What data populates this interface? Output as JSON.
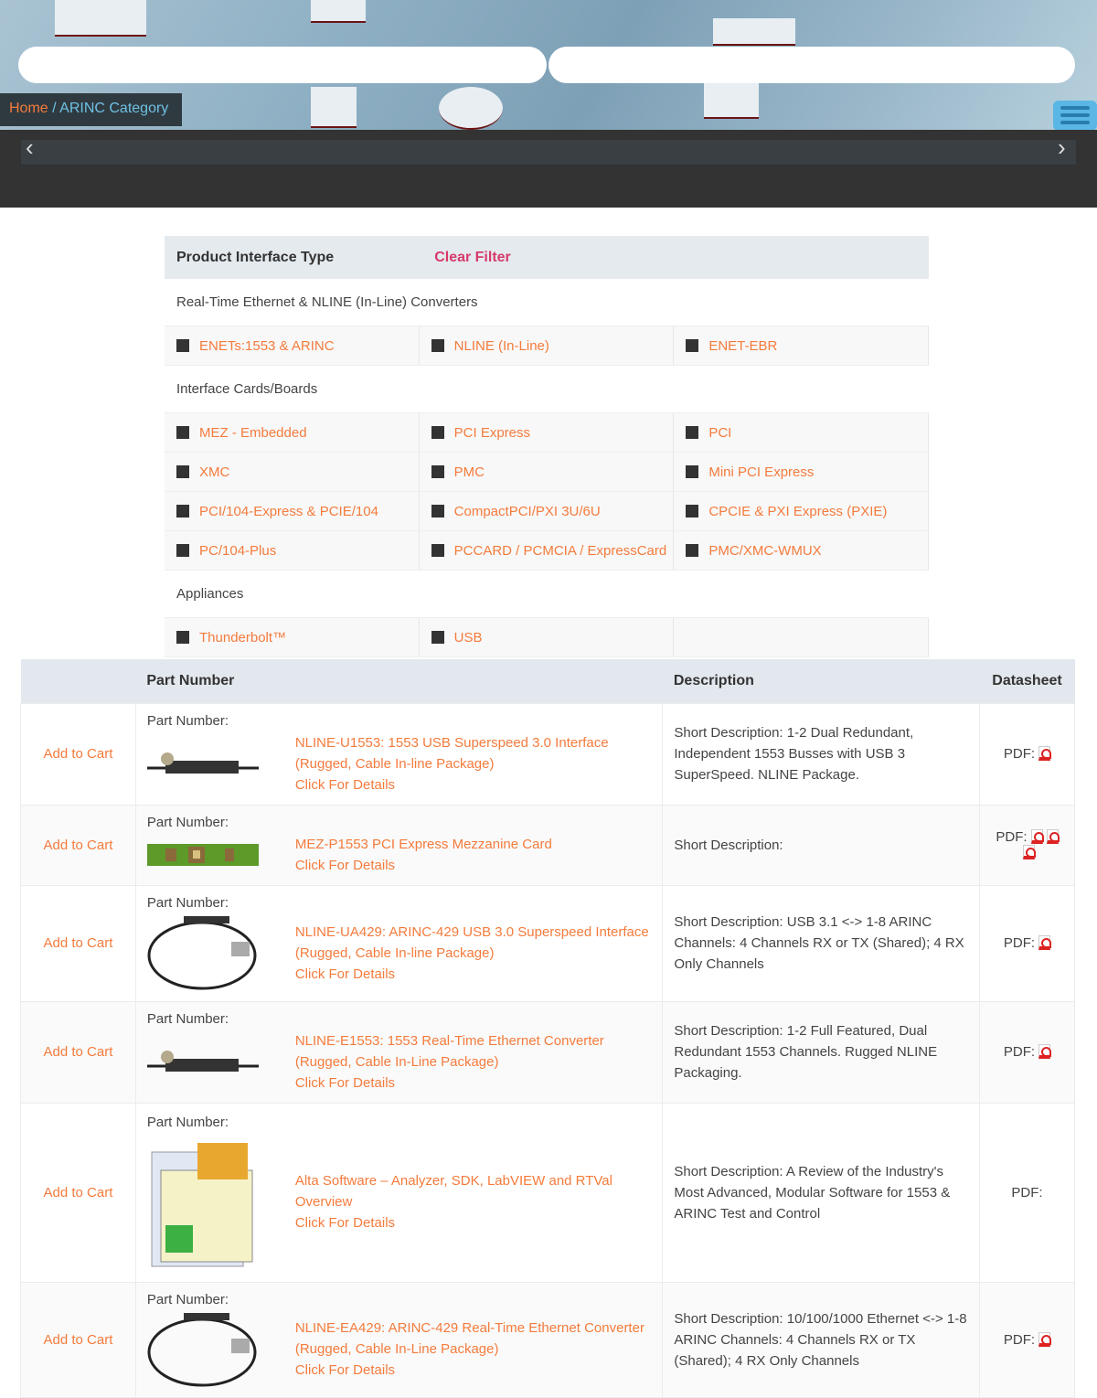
{
  "breadcrumb": {
    "home": "Home",
    "separator": " / ",
    "current": "ARINC Category"
  },
  "filter": {
    "title": "Product Interface Type",
    "clear": "Clear Filter",
    "groups": [
      {
        "label": "Real-Time Ethernet & NLINE (In-Line) Converters",
        "rows": [
          [
            "ENETs:1553 & ARINC",
            "NLINE (In-Line)",
            "ENET-EBR"
          ]
        ]
      },
      {
        "label": "Interface Cards/Boards",
        "rows": [
          [
            "MEZ - Embedded",
            "PCI Express",
            "PCI"
          ],
          [
            "XMC",
            "PMC",
            "Mini PCI Express"
          ],
          [
            "PCI/104-Express & PCIE/104",
            "CompactPCI/PXI 3U/6U",
            "CPCIE & PXI Express (PXIE)"
          ],
          [
            "PC/104-Plus",
            "PCCARD / PCMCIA / ExpressCard",
            "PMC/XMC-WMUX"
          ]
        ]
      },
      {
        "label": "Appliances",
        "rows": [
          [
            "Thunderbolt™",
            "USB",
            ""
          ]
        ]
      }
    ]
  },
  "table": {
    "headers": [
      "",
      "Part Number",
      "Description",
      "Datasheet"
    ],
    "add_label": "Add to Cart",
    "pn_label": "Part Number:",
    "details": "Click For Details",
    "pdf_label": "PDF:",
    "rows": [
      {
        "title": [
          "NLINE-U1553: 1553 USB Superspeed 3.0 Interface",
          "(Rugged, Cable In-line Package)"
        ],
        "desc": "Short Description:  1-2 Dual Redundant, Independent 1553 Busses with USB 3 SuperSpeed. NLINE Package.",
        "pdfs": 1,
        "thumb": "cable-device"
      },
      {
        "title": [
          "MEZ-P1553 PCI Express Mezzanine Card"
        ],
        "desc": "Short Description:",
        "pdfs": 3,
        "thumb": "green-board"
      },
      {
        "title": [
          "NLINE-UA429: ARINC-429 USB 3.0 Superspeed Interface",
          "(Rugged, Cable In-line Package)"
        ],
        "desc": "Short Description:  USB 3.1 <-> 1-8 ARINC Channels: 4 Channels RX or TX (Shared); 4 RX Only Channels",
        "pdfs": 1,
        "thumb": "cable-loop"
      },
      {
        "title": [
          "NLINE-E1553: 1553 Real-Time Ethernet Converter",
          "(Rugged, Cable In-Line Package)"
        ],
        "desc": "Short Description:  1-2 Full Featured, Dual Redundant 1553 Channels. Rugged NLINE Packaging.",
        "pdfs": 1,
        "thumb": "cable-device"
      },
      {
        "title": [
          "Alta Software – Analyzer, SDK, LabVIEW and RTVal",
          "Overview"
        ],
        "desc": "Short Description:  A Review of the Industry's Most Advanced, Modular Software for 1553 & ARINC Test and Control",
        "pdfs": 0,
        "thumb": "software"
      },
      {
        "title": [
          "NLINE-EA429: ARINC-429 Real-Time Ethernet Converter",
          "(Rugged, Cable In-Line Package)"
        ],
        "desc": "Short Description:  10/100/1000 Ethernet <-> 1-8 ARINC Channels: 4 Channels RX or TX (Shared); 4 RX Only Channels",
        "pdfs": 1,
        "thumb": "cable-loop"
      }
    ]
  },
  "colors": {
    "accent": "#f47b3c",
    "clear": "#d63a6a",
    "crumb_current": "#6ec1e4"
  }
}
